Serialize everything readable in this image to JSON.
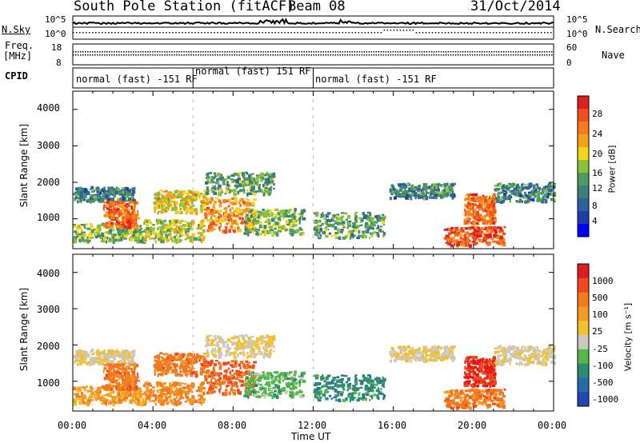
{
  "header": {
    "station": "South Pole Station (fitACF)",
    "beam": "Beam 08",
    "date": "31/Oct/2014"
  },
  "noise_panel": {
    "left_label": "N.Sky",
    "right_label": "N.Search",
    "left_ticks": [
      "10^5",
      "10^0"
    ],
    "right_ticks": [
      "10^5",
      "10^0"
    ]
  },
  "freq_panel": {
    "left_label": "Freq.",
    "left_unit": "[MHz]",
    "left_ticks": [
      "18",
      "8"
    ],
    "right_label": "Nave",
    "right_ticks": [
      "60",
      "0"
    ]
  },
  "cpid_panel": {
    "label": "CPID",
    "segments": [
      {
        "text": "normal (fast) -151 RF",
        "start_hour": 0,
        "end_hour": 6
      },
      {
        "text": "normal (fast) 151 RF",
        "start_hour": 6,
        "end_hour": 12
      },
      {
        "text": "normal (fast) -151 RF",
        "start_hour": 12,
        "end_hour": 24
      }
    ]
  },
  "power_panel": {
    "ylabel": "Slant Range [km]",
    "yticks": [
      "4000",
      "3000",
      "2000",
      "1000"
    ],
    "colorbar_title": "Power [dB]",
    "colorbar_ticks": [
      "28",
      "24",
      "20",
      "16",
      "12",
      "8",
      "4"
    ],
    "colors": [
      "#0000ff",
      "#1a3fa8",
      "#2e5fa0",
      "#3e7e7a",
      "#4f9a5c",
      "#88c23a",
      "#f2d51b",
      "#f7a21a",
      "#f57b1c",
      "#ef4e1f",
      "#e01f1f"
    ]
  },
  "velocity_panel": {
    "ylabel": "Slant Range [km]",
    "yticks": [
      "4000",
      "3000",
      "2000",
      "1000"
    ],
    "colorbar_title": "Velocity [m s⁻¹]",
    "colorbar_ticks": [
      "1000",
      "500",
      "100",
      "25",
      "-25",
      "-100",
      "-500",
      "-1000"
    ],
    "colors": [
      "#2346b5",
      "#2a6aa8",
      "#2e8c6e",
      "#54b848",
      "#c9c9c1",
      "#f4c02e",
      "#f59a23",
      "#f27a1e",
      "#ee4a1e",
      "#e01b1b"
    ]
  },
  "x_axis": {
    "title": "Time UT",
    "ticks": [
      "00:00",
      "04:00",
      "08:00",
      "12:00",
      "16:00",
      "20:00",
      "00:00"
    ]
  },
  "chart_data": {
    "type": "heatmap",
    "title": "South Pole Station (fitACF) Beam 08 31/Oct/2014",
    "xlabel": "Time UT",
    "ylabel": "Slant Range [km]",
    "xlim_hours": [
      0,
      24
    ],
    "ylim_km": [
      180,
      4500
    ],
    "power_scale_db": [
      0,
      30
    ],
    "velocity_scale_ms": [
      -1000,
      1000
    ],
    "freq_mhz": 12,
    "nave": 40,
    "scatter_regions": [
      {
        "t0": 0.0,
        "t1": 3.5,
        "r0": 400,
        "r1": 900,
        "power": 14,
        "velocity": -300
      },
      {
        "t0": 0.0,
        "t1": 3.0,
        "r0": 1500,
        "r1": 1900,
        "power": 10,
        "velocity": 25
      },
      {
        "t0": 1.5,
        "t1": 3.2,
        "r0": 800,
        "r1": 1500,
        "power": 24,
        "velocity": -500
      },
      {
        "t0": 3.5,
        "t1": 6.5,
        "r0": 400,
        "r1": 1000,
        "power": 16,
        "velocity": -400
      },
      {
        "t0": 4.0,
        "t1": 6.5,
        "r0": 1200,
        "r1": 1800,
        "power": 18,
        "velocity": -500
      },
      {
        "t0": 6.5,
        "t1": 9.0,
        "r0": 700,
        "r1": 1600,
        "power": 22,
        "velocity": -600
      },
      {
        "t0": 6.5,
        "t1": 10.0,
        "r0": 1700,
        "r1": 2300,
        "power": 12,
        "velocity": 25
      },
      {
        "t0": 8.5,
        "t1": 11.5,
        "r0": 600,
        "r1": 1300,
        "power": 14,
        "velocity": 300
      },
      {
        "t0": 12.0,
        "t1": 15.5,
        "r0": 500,
        "r1": 1200,
        "power": 12,
        "velocity": 500
      },
      {
        "t0": 15.8,
        "t1": 19.0,
        "r0": 1600,
        "r1": 2000,
        "power": 10,
        "velocity": 25
      },
      {
        "t0": 18.5,
        "t1": 21.5,
        "r0": 300,
        "r1": 800,
        "power": 26,
        "velocity": -500
      },
      {
        "t0": 19.5,
        "t1": 21.0,
        "r0": 900,
        "r1": 1700,
        "power": 24,
        "velocity": -800
      },
      {
        "t0": 21.0,
        "t1": 24.0,
        "r0": 1500,
        "r1": 2000,
        "power": 10,
        "velocity": 25
      }
    ]
  }
}
